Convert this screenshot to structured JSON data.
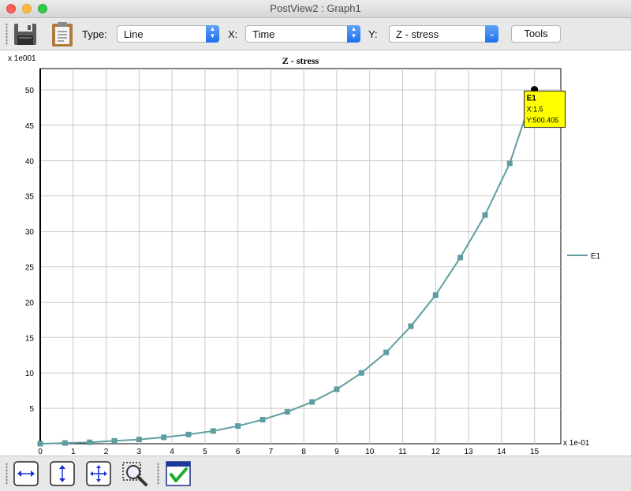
{
  "window": {
    "title": "PostView2 : Graph1"
  },
  "toolbar": {
    "type_label": "Type:",
    "type_value": "Line",
    "x_label": "X:",
    "x_value": "Time",
    "y_label": "Y:",
    "y_value": "Z - stress",
    "tools_label": "Tools"
  },
  "tooltip": {
    "series": "E1",
    "x_text": "X:1.5",
    "y_text": "Y:500.405"
  },
  "chart_data": {
    "type": "line",
    "title": "Z - stress",
    "y_scale_label": "x 1e001",
    "x_scale_label": "x 1e-01",
    "xlim": [
      0,
      15.8
    ],
    "ylim": [
      0,
      53
    ],
    "x_ticks": [
      0,
      1,
      2,
      3,
      4,
      5,
      6,
      7,
      8,
      9,
      10,
      11,
      12,
      13,
      14,
      15
    ],
    "y_ticks": [
      5,
      10,
      15,
      20,
      25,
      30,
      35,
      40,
      45,
      50
    ],
    "grid": true,
    "legend_position": "right",
    "series": [
      {
        "name": "E1",
        "color": "#5f9ea0",
        "x": [
          0,
          0.75,
          1.5,
          2.25,
          3.0,
          3.75,
          4.5,
          5.25,
          6.0,
          6.75,
          7.5,
          8.25,
          9.0,
          9.75,
          10.5,
          11.25,
          12.0,
          12.75,
          13.5,
          14.25,
          15.0
        ],
        "y": [
          0.0,
          0.1,
          0.2,
          0.4,
          0.6,
          0.9,
          1.3,
          1.8,
          2.5,
          3.4,
          4.5,
          5.9,
          7.7,
          10.0,
          12.9,
          16.6,
          21.0,
          26.3,
          32.3,
          39.6,
          50.04
        ]
      }
    ]
  },
  "colors": {
    "series": "#5f9ea0",
    "tooltip_bg": "#ffff00",
    "accent": "#1f6ff0"
  }
}
